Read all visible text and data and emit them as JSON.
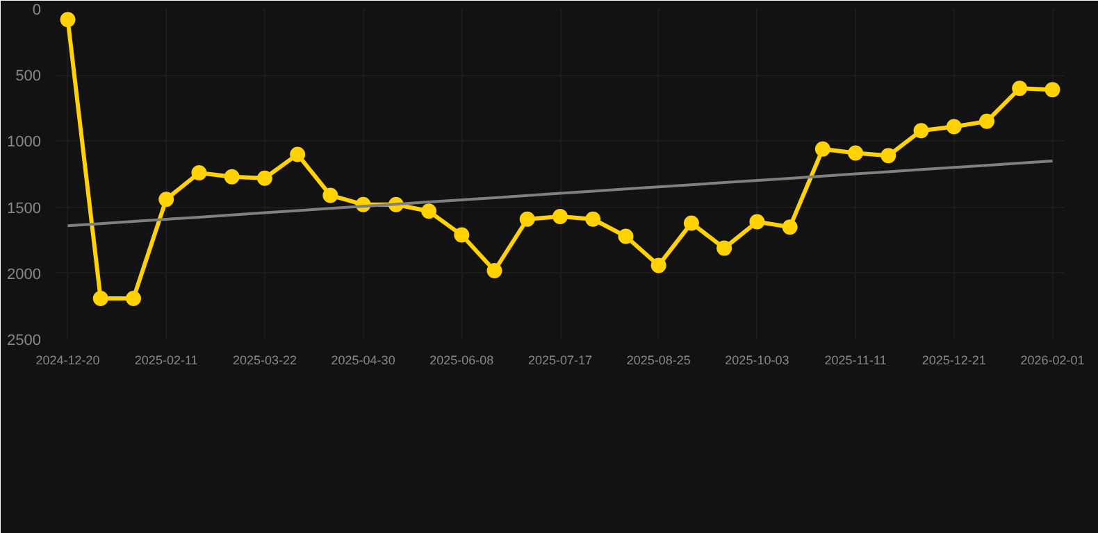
{
  "chart_data": {
    "type": "line",
    "categories": [
      "2024-12-20",
      null,
      null,
      "2025-02-11",
      null,
      null,
      "2025-03-22",
      null,
      null,
      "2025-04-30",
      null,
      null,
      "2025-06-08",
      null,
      null,
      "2025-07-17",
      null,
      null,
      "2025-08-25",
      null,
      null,
      "2025-10-03",
      null,
      null,
      "2025-11-11",
      null,
      null,
      "2025-12-21",
      null,
      null,
      "2026-02-01"
    ],
    "series": [
      {
        "color": "#ffd200",
        "marker": "circle",
        "values": [
          80,
          2190,
          2190,
          1440,
          1240,
          1270,
          1280,
          1100,
          1410,
          1480,
          1480,
          1530,
          1710,
          1980,
          1590,
          1570,
          1590,
          1720,
          1940,
          1620,
          1810,
          1610,
          1650,
          1060,
          1090,
          1110,
          920,
          890,
          850,
          600,
          610
        ]
      },
      {
        "color": "#808080",
        "marker": "none",
        "values": [
          1640,
          1624,
          1607,
          1591,
          1575,
          1558,
          1542,
          1526,
          1509,
          1493,
          1477,
          1460,
          1444,
          1428,
          1411,
          1395,
          1379,
          1362,
          1346,
          1330,
          1313,
          1297,
          1281,
          1264,
          1248,
          1232,
          1215,
          1199,
          1183,
          1166,
          1150
        ]
      }
    ],
    "ylim": [
      2500,
      0
    ],
    "yticks": [
      0,
      500,
      1000,
      1500,
      2000,
      2500
    ],
    "grid": true
  }
}
